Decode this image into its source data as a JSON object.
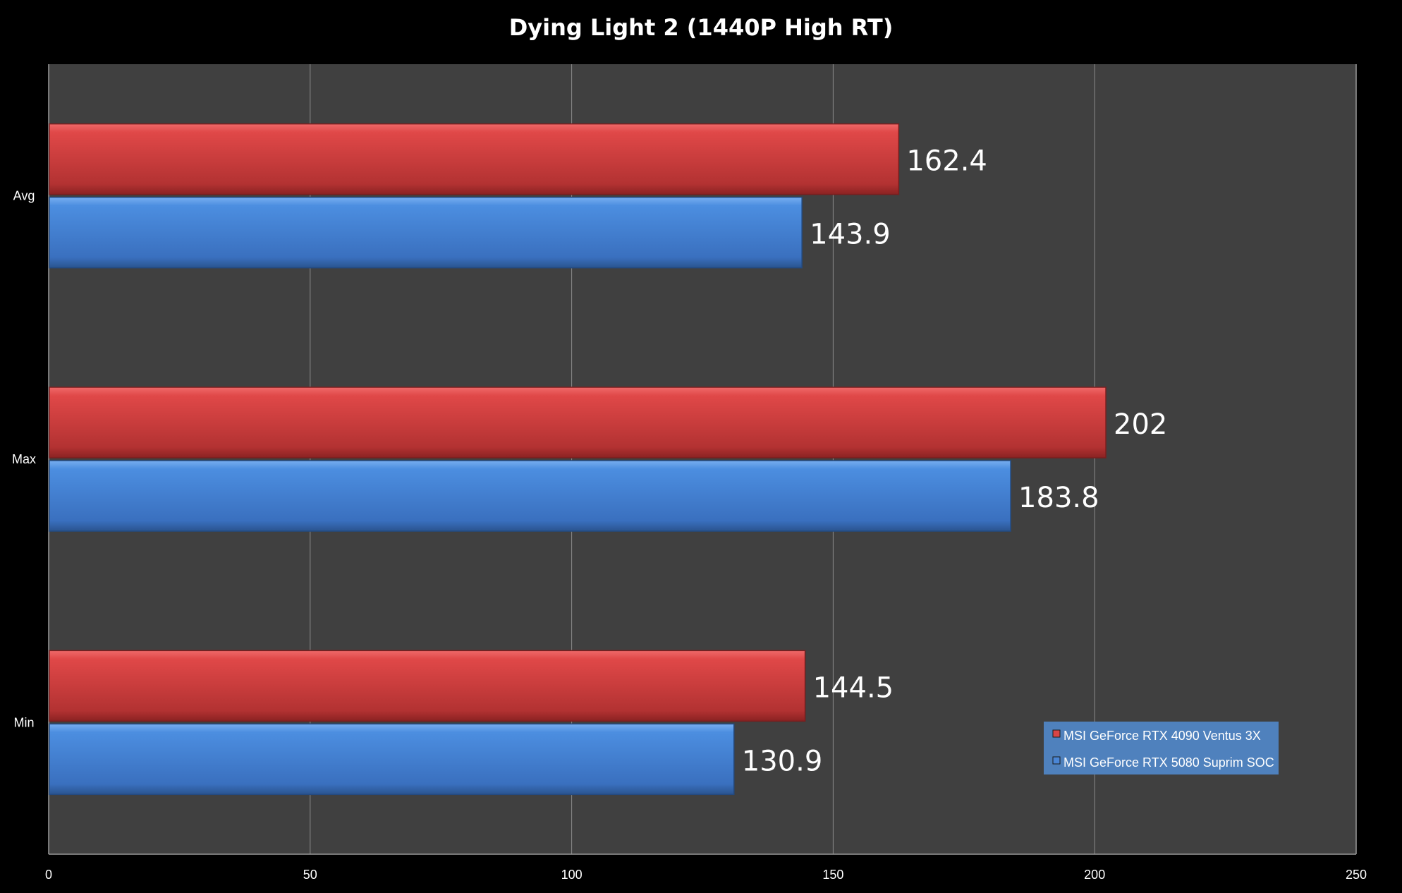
{
  "chart_data": {
    "type": "bar",
    "orientation": "horizontal",
    "title": "Dying Light 2 (1440P High RT)",
    "categories": [
      "Avg",
      "Max",
      "Min"
    ],
    "series": [
      {
        "name": "MSI GeForce RTX 4090 Ventus 3X",
        "values": [
          162.4,
          202,
          144.5
        ],
        "color": "#d94545"
      },
      {
        "name": "MSI GeForce RTX 5080 Suprim SOC",
        "values": [
          143.9,
          183.8,
          130.9
        ],
        "color": "#4a86d6"
      }
    ],
    "xlim": [
      0,
      250
    ],
    "xticks": [
      "0",
      "50",
      "100",
      "150",
      "200",
      "250"
    ],
    "value_labels": [
      [
        "162.4",
        "202",
        "144.5"
      ],
      [
        "143.9",
        "183.8",
        "130.9"
      ]
    ],
    "grid": true,
    "legend": "bottom-right",
    "background": "#000000",
    "plot_background": "#404040"
  }
}
